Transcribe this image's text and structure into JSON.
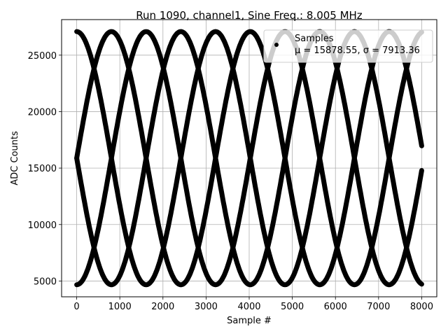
{
  "chart_data": {
    "type": "scatter",
    "title": "Run 1090, channel1, Sine Freq.: 8.005 MHz",
    "xlabel": "Sample #",
    "ylabel": "ADC Counts",
    "xlim": [
      -350,
      8350
    ],
    "ylim": [
      3600,
      28150
    ],
    "xticks": [
      0,
      1000,
      2000,
      3000,
      4000,
      5000,
      6000,
      7000,
      8000
    ],
    "yticks": [
      5000,
      10000,
      15000,
      20000,
      25000
    ],
    "grid": true,
    "legend": {
      "placement": "top-right",
      "entries": [
        "Samples",
        "μ = 15878.55, σ = 7913.36"
      ]
    },
    "series": [
      {
        "name": "Samples",
        "marker": "dot",
        "color": "#000000",
        "mean": 15878.55,
        "offset": 15878.55,
        "amplitude": 11210,
        "period_samples": 3220,
        "phases_deg": [
          90,
          180,
          270,
          0
        ],
        "x_range": [
          0,
          8000
        ]
      }
    ]
  }
}
